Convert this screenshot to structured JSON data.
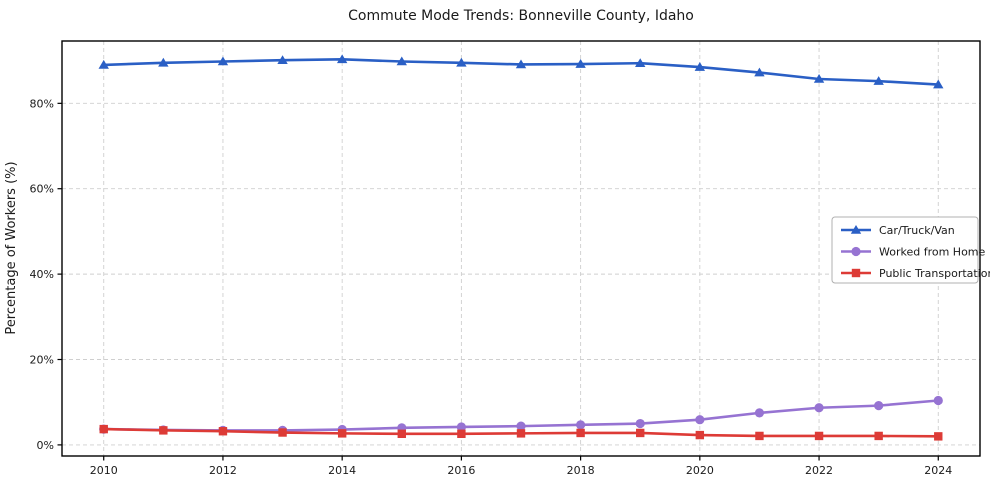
{
  "title": "Commute Mode Trends: Bonneville County, Idaho",
  "chart_data": {
    "type": "line",
    "title": "Commute Mode Trends: Bonneville County, Idaho",
    "xlabel": "",
    "ylabel": "Percentage of Workers (%)",
    "x": [
      2010,
      2011,
      2012,
      2013,
      2014,
      2015,
      2016,
      2017,
      2018,
      2019,
      2020,
      2021,
      2022,
      2023,
      2024
    ],
    "x_ticks": [
      2010,
      2012,
      2014,
      2016,
      2018,
      2020,
      2022,
      2024
    ],
    "y_ticks": [
      0,
      20,
      40,
      60,
      80
    ],
    "y_tick_suffix": "%",
    "xlim": [
      2009.3,
      2024.7
    ],
    "ylim": [
      -2.6,
      94.6
    ],
    "grid": true,
    "grid_style": "dashed",
    "legend_position": "middle-right",
    "background_color": "#ffffff",
    "grid_color": "#cfcfcf",
    "frame_color": "#000000",
    "series": [
      {
        "name": "Car/Truck/Van",
        "color": "#2a5fc5",
        "marker": "triangle",
        "values": [
          89.0,
          89.5,
          89.8,
          90.1,
          90.3,
          89.8,
          89.5,
          89.1,
          89.2,
          89.4,
          88.5,
          87.2,
          85.7,
          85.2,
          84.4
        ]
      },
      {
        "name": "Worked from Home",
        "color": "#9673d2",
        "marker": "circle",
        "values": [
          3.7,
          3.5,
          3.4,
          3.4,
          3.6,
          4.0,
          4.2,
          4.4,
          4.7,
          5.0,
          5.9,
          7.5,
          8.7,
          9.2,
          10.4
        ]
      },
      {
        "name": "Public Transportation",
        "color": "#dd3b36",
        "marker": "square",
        "values": [
          3.7,
          3.4,
          3.2,
          2.9,
          2.7,
          2.6,
          2.6,
          2.7,
          2.8,
          2.8,
          2.3,
          2.1,
          2.1,
          2.1,
          2.0
        ]
      }
    ]
  }
}
